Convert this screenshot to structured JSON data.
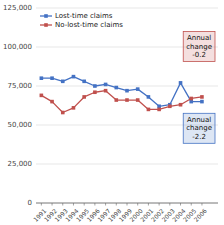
{
  "chart_data": {
    "type": "line",
    "x": [
      1991,
      1992,
      1993,
      1994,
      1995,
      1996,
      1997,
      1998,
      1999,
      2000,
      2001,
      2002,
      2003,
      2004,
      2005,
      2006
    ],
    "xlim": [
      1990.5,
      2007.5
    ],
    "xticks": [
      1991,
      1992,
      1993,
      1994,
      1995,
      1996,
      1997,
      1998,
      1999,
      2000,
      2001,
      2002,
      2003,
      2004,
      2005,
      2006
    ],
    "series": [
      {
        "name": "Lost-time claims",
        "color": "#4472C4",
        "marker": "square",
        "values": [
          80000,
          80000,
          78000,
          81000,
          78000,
          75000,
          76000,
          74000,
          72000,
          73000,
          68000,
          62000,
          63000,
          77000,
          65000,
          65000
        ]
      },
      {
        "name": "No-lost-time claims",
        "color": "#C0504D",
        "marker": "square",
        "values": [
          69000,
          65000,
          58000,
          61000,
          68000,
          71000,
          72000,
          66000,
          66000,
          66000,
          60000,
          60000,
          62000,
          63000,
          67000,
          68000
        ]
      }
    ],
    "ylim": [
      0,
      125000
    ],
    "yticks": [
      0,
      {
        "value": 25000,
        "label": "25,000"
      },
      {
        "value": 50000,
        "label": "50,000"
      },
      {
        "value": 75000,
        "label": "75,000"
      },
      {
        "value": 100000,
        "label": "100,000"
      },
      {
        "value": 125000,
        "label": "125,000"
      }
    ],
    "grid": true,
    "legend": "upper left",
    "annotations": [
      {
        "text": "Annual\nchange\n-0.2",
        "color": "#C0504D"
      },
      {
        "text": "Annual\nchange\n-2.2",
        "color": "#4472C4"
      }
    ]
  }
}
